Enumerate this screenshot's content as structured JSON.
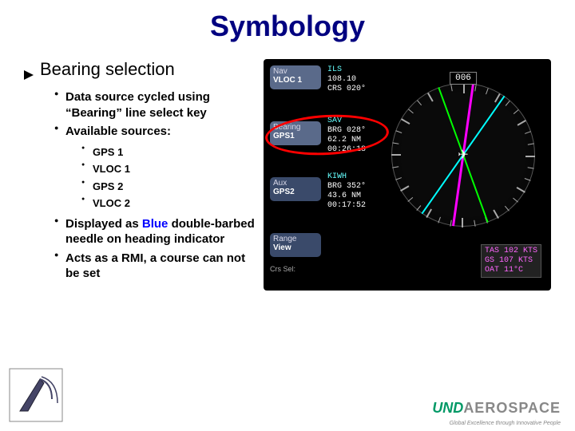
{
  "title": "Symbology",
  "section": "Bearing selection",
  "bullets": {
    "b1": "Data source cycled using “Bearing” line select key",
    "b2": "Available sources:",
    "sub": {
      "s1": "GPS 1",
      "s2": "VLOC 1",
      "s3": "GPS 2",
      "s4": "VLOC 2"
    },
    "b3_prefix": "Displayed as ",
    "b3_blue": "Blue",
    "b3_suffix": " double-barbed needle on heading indicator",
    "b4": "Acts as a RMI, a course can not be set"
  },
  "pfd": {
    "softkeys": {
      "nav": {
        "label": "Nav",
        "value": "VLOC 1"
      },
      "bearing": {
        "label": "Bearing",
        "value": "GPS1"
      },
      "aux": {
        "label": "Aux",
        "value": "GPS2"
      },
      "range": {
        "label": "Range",
        "value": "View"
      },
      "crs": "Crs Sel:"
    },
    "data1": {
      "l1": "ILS",
      "l2": "108.10",
      "l3": "CRS 020°"
    },
    "data2": {
      "l1": "SAV",
      "l2": "BRG 028°",
      "l3": "62.2 NM",
      "l4": "00:26:18"
    },
    "data3": {
      "l1": "KIWH",
      "l2": "BRG 352°",
      "l3": "43.6 NM",
      "l4": "00:17:52"
    },
    "hsi": {
      "heading": "006"
    },
    "speed": {
      "tas": "TAS 102 KTS",
      "gs": "GS  107 KTS",
      "oat": "OAT  11°C"
    }
  },
  "logo": {
    "und": "UND",
    "aero": "AEROSPACE",
    "tagline": "Global Excellence through Innovative People"
  }
}
